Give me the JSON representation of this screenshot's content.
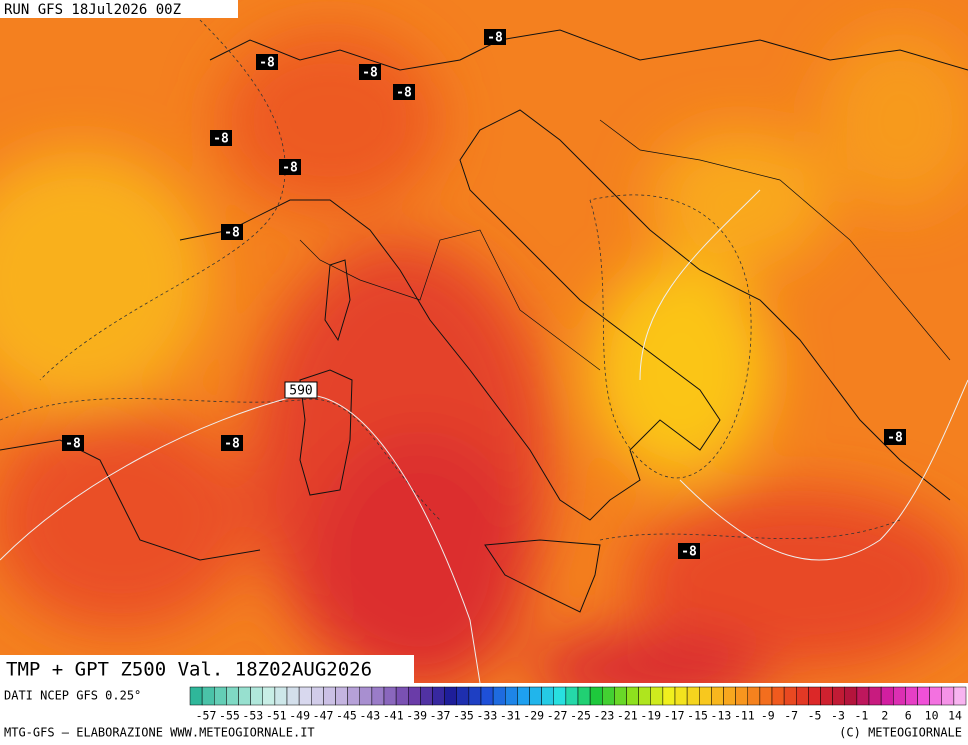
{
  "header": {
    "run": "RUN GFS 18Jul2026 00Z"
  },
  "map": {
    "contour_labels": [
      "-8",
      "-8",
      "-8",
      "-8",
      "-8",
      "-8",
      "-8",
      "-8",
      "-8",
      "-8",
      "-8"
    ],
    "isohypse_label": "590"
  },
  "title": "TMP + GPT Z500 Val. 18Z02AUG2026",
  "source": "DATI NCEP GFS 0.25°",
  "legend": {
    "labels": [
      "-57",
      "-55",
      "-53",
      "-51",
      "-49",
      "-47",
      "-45",
      "-43",
      "-41",
      "-39",
      "-37",
      "-35",
      "-33",
      "-31",
      "-29",
      "-27",
      "-25",
      "-23",
      "-21",
      "-19",
      "-17",
      "-15",
      "-13",
      "-11",
      "-9",
      "-7",
      "-5",
      "-3",
      "-1",
      "2",
      "6",
      "10",
      "14"
    ]
  },
  "footer": {
    "left": "MTG-GFS — ELABORAZIONE WWW.METEOGIORNALE.IT",
    "right": "(C) METEOGIORNALE"
  }
}
